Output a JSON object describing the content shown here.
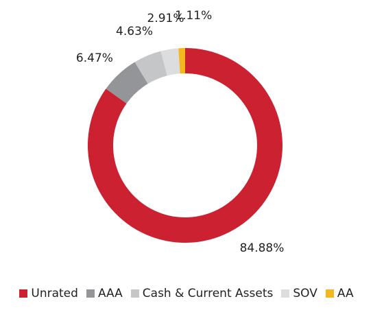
{
  "chart_data": {
    "type": "pie",
    "donut": true,
    "title": "",
    "slices": [
      {
        "label": "Unrated",
        "value": 84.88,
        "value_label": "84.88%",
        "color": "#cc2131"
      },
      {
        "label": "AAA",
        "value": 6.47,
        "value_label": "6.47%",
        "color": "#939598"
      },
      {
        "label": "Cash & Current Assets",
        "value": 4.63,
        "value_label": "4.63%",
        "color": "#c4c6c8"
      },
      {
        "label": "SOV",
        "value": 2.91,
        "value_label": "2.91%",
        "color": "#dcdddf"
      },
      {
        "label": "AA",
        "value": 1.11,
        "value_label": "1.11%",
        "color": "#f4b81c"
      }
    ],
    "legend_position": "bottom"
  }
}
